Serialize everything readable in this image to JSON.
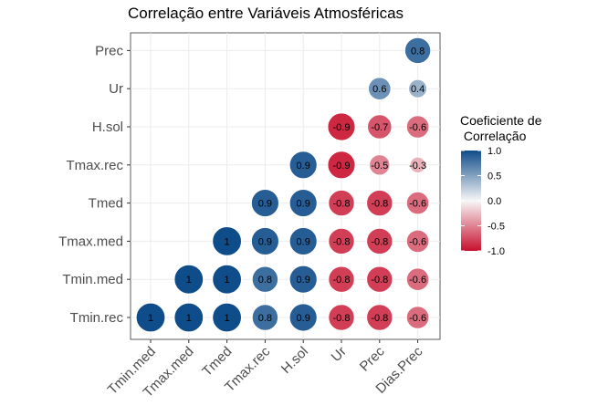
{
  "chart_data": {
    "type": "correlogram",
    "title": "Correlação entre Variáveis Atmosféricas",
    "x_categories": [
      "Tmin.med",
      "Tmax.med",
      "Tmed",
      "Tmax.rec",
      "H.sol",
      "Ur",
      "Prec",
      "Dias.Prec"
    ],
    "y_categories": [
      "Tmin.rec",
      "Tmin.med",
      "Tmax.med",
      "Tmed",
      "Tmax.rec",
      "H.sol",
      "Ur",
      "Prec"
    ],
    "cells": [
      {
        "x": "Tmin.med",
        "y": "Tmin.rec",
        "value": 1,
        "label": "1"
      },
      {
        "x": "Tmax.med",
        "y": "Tmin.rec",
        "value": 1,
        "label": "1"
      },
      {
        "x": "Tmed",
        "y": "Tmin.rec",
        "value": 1,
        "label": "1"
      },
      {
        "x": "Tmax.rec",
        "y": "Tmin.rec",
        "value": 0.8,
        "label": "0.8"
      },
      {
        "x": "H.sol",
        "y": "Tmin.rec",
        "value": 0.9,
        "label": "0.9"
      },
      {
        "x": "Ur",
        "y": "Tmin.rec",
        "value": -0.8,
        "label": "-0.8"
      },
      {
        "x": "Prec",
        "y": "Tmin.rec",
        "value": -0.8,
        "label": "-0.8"
      },
      {
        "x": "Dias.Prec",
        "y": "Tmin.rec",
        "value": -0.6,
        "label": "-0.6"
      },
      {
        "x": "Tmax.med",
        "y": "Tmin.med",
        "value": 1,
        "label": "1"
      },
      {
        "x": "Tmed",
        "y": "Tmin.med",
        "value": 1,
        "label": "1"
      },
      {
        "x": "Tmax.rec",
        "y": "Tmin.med",
        "value": 0.8,
        "label": "0.8"
      },
      {
        "x": "H.sol",
        "y": "Tmin.med",
        "value": 0.9,
        "label": "0.9"
      },
      {
        "x": "Ur",
        "y": "Tmin.med",
        "value": -0.8,
        "label": "-0.8"
      },
      {
        "x": "Prec",
        "y": "Tmin.med",
        "value": -0.8,
        "label": "-0.8"
      },
      {
        "x": "Dias.Prec",
        "y": "Tmin.med",
        "value": -0.6,
        "label": "-0.6"
      },
      {
        "x": "Tmed",
        "y": "Tmax.med",
        "value": 1,
        "label": "1"
      },
      {
        "x": "Tmax.rec",
        "y": "Tmax.med",
        "value": 0.9,
        "label": "0.9"
      },
      {
        "x": "H.sol",
        "y": "Tmax.med",
        "value": 0.9,
        "label": "0.9"
      },
      {
        "x": "Ur",
        "y": "Tmax.med",
        "value": -0.8,
        "label": "-0.8"
      },
      {
        "x": "Prec",
        "y": "Tmax.med",
        "value": -0.8,
        "label": "-0.8"
      },
      {
        "x": "Dias.Prec",
        "y": "Tmax.med",
        "value": -0.6,
        "label": "-0.6"
      },
      {
        "x": "Tmax.rec",
        "y": "Tmed",
        "value": 0.9,
        "label": "0.9"
      },
      {
        "x": "H.sol",
        "y": "Tmed",
        "value": 0.9,
        "label": "0.9"
      },
      {
        "x": "Ur",
        "y": "Tmed",
        "value": -0.8,
        "label": "-0.8"
      },
      {
        "x": "Prec",
        "y": "Tmed",
        "value": -0.8,
        "label": "-0.8"
      },
      {
        "x": "Dias.Prec",
        "y": "Tmed",
        "value": -0.6,
        "label": "-0.6"
      },
      {
        "x": "H.sol",
        "y": "Tmax.rec",
        "value": 0.9,
        "label": "0.9"
      },
      {
        "x": "Ur",
        "y": "Tmax.rec",
        "value": -0.9,
        "label": "-0.9"
      },
      {
        "x": "Prec",
        "y": "Tmax.rec",
        "value": -0.5,
        "label": "-0.5"
      },
      {
        "x": "Dias.Prec",
        "y": "Tmax.rec",
        "value": -0.3,
        "label": "-0.3"
      },
      {
        "x": "Ur",
        "y": "H.sol",
        "value": -0.9,
        "label": "-0.9"
      },
      {
        "x": "Prec",
        "y": "H.sol",
        "value": -0.7,
        "label": "-0.7"
      },
      {
        "x": "Dias.Prec",
        "y": "H.sol",
        "value": -0.6,
        "label": "-0.6"
      },
      {
        "x": "Prec",
        "y": "Ur",
        "value": 0.6,
        "label": "0.6"
      },
      {
        "x": "Dias.Prec",
        "y": "Ur",
        "value": 0.4,
        "label": "0.4"
      },
      {
        "x": "Dias.Prec",
        "y": "Prec",
        "value": 0.8,
        "label": "0.8"
      }
    ],
    "legend": {
      "title_line1": "Coeficiente de",
      "title_line2": " Correlação",
      "ticks": [
        1.0,
        0.5,
        0.0,
        -0.5,
        -1.0
      ],
      "tick_labels": [
        "1.0",
        "0.5",
        "0.0",
        "-0.5",
        "-1.0"
      ],
      "range": [
        -1,
        1
      ],
      "placement": "right"
    },
    "colors": {
      "positive": "#0f4c8a",
      "zero": "#f7f7f7",
      "negative": "#c8102e",
      "grid": "#ebebeb",
      "panel_border": "#333333"
    },
    "grid": true
  }
}
